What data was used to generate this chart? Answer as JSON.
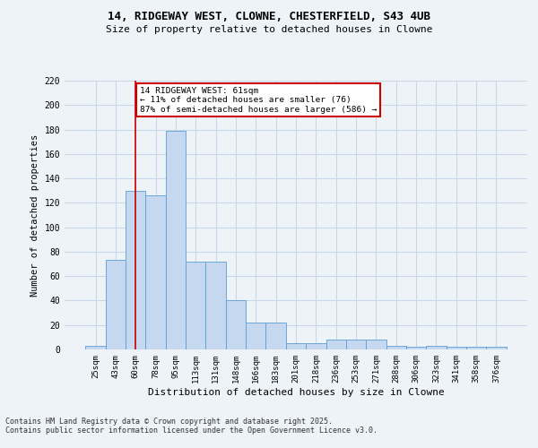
{
  "title_line1": "14, RIDGEWAY WEST, CLOWNE, CHESTERFIELD, S43 4UB",
  "title_line2": "Size of property relative to detached houses in Clowne",
  "xlabel": "Distribution of detached houses by size in Clowne",
  "ylabel": "Number of detached properties",
  "bins": [
    "25sqm",
    "43sqm",
    "60sqm",
    "78sqm",
    "95sqm",
    "113sqm",
    "131sqm",
    "148sqm",
    "166sqm",
    "183sqm",
    "201sqm",
    "218sqm",
    "236sqm",
    "253sqm",
    "271sqm",
    "288sqm",
    "306sqm",
    "323sqm",
    "341sqm",
    "358sqm",
    "376sqm"
  ],
  "values": [
    3,
    73,
    130,
    126,
    179,
    72,
    72,
    40,
    22,
    22,
    5,
    5,
    8,
    8,
    8,
    3,
    2,
    3,
    2,
    2,
    2
  ],
  "bar_color": "#c5d8f0",
  "bar_edge_color": "#5a9fd4",
  "property_bin_index": 2,
  "vline_color": "#cc0000",
  "annotation_text": "14 RIDGEWAY WEST: 61sqm\n← 11% of detached houses are smaller (76)\n87% of semi-detached houses are larger (586) →",
  "annotation_box_color": "white",
  "annotation_box_edge": "#cc0000",
  "grid_color": "#c8d8e8",
  "background_color": "#eef3f8",
  "footer_line1": "Contains HM Land Registry data © Crown copyright and database right 2025.",
  "footer_line2": "Contains public sector information licensed under the Open Government Licence v3.0.",
  "ylim": [
    0,
    220
  ],
  "yticks": [
    0,
    20,
    40,
    60,
    80,
    100,
    120,
    140,
    160,
    180,
    200,
    220
  ]
}
